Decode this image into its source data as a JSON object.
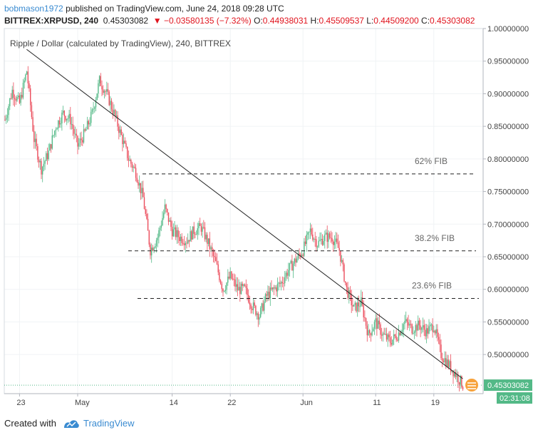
{
  "header": {
    "author": "bobmason1972",
    "published": " published on TradingView.com, June 24, 2018 09:28 UTC",
    "symbol": "BITTREX:XRPUSD, 240",
    "last": "0.45303082",
    "change": "▼ −0.03580135 (−7.32%)",
    "o_label": "O:",
    "o": "0.44938031",
    "h_label": "H:",
    "h": "0.45509537",
    "l_label": "L:",
    "l": "0.44509200",
    "c_label": "C:",
    "c": "0.45303082"
  },
  "footer": {
    "created_with": "Created with",
    "brand": "TradingView"
  },
  "colors": {
    "up": "#53b987",
    "down": "#eb4d5c",
    "grid": "#f0f3f5",
    "axis_text": "#444444",
    "price_tag": "#53b987",
    "timer_tag": "#53b987"
  },
  "chart_data": {
    "type": "candlestick",
    "title": "Ripple / Dollar (calculated by TradingView), 240, BITTREX",
    "ylim": [
      0.44,
      1.0
    ],
    "y_ticks": [
      "1.00000000",
      "0.95000000",
      "0.90000000",
      "0.85000000",
      "0.80000000",
      "0.75000000",
      "0.70000000",
      "0.65000000",
      "0.60000000",
      "0.55000000",
      "0.50000000"
    ],
    "x_ticks": [
      "23",
      "May",
      "14",
      "22",
      "Jun",
      "11",
      "19"
    ],
    "last_price": "0.45303082",
    "countdown": "02:31:08",
    "fib_levels": [
      {
        "label": "62% FIB",
        "value": 0.777
      },
      {
        "label": "38.2% FIB",
        "value": 0.659
      },
      {
        "label": "23.6% FIB",
        "value": 0.586
      }
    ],
    "trendline": {
      "start": [
        "Apr 23",
        0.968
      ],
      "end": [
        "Jun 22",
        0.463
      ]
    },
    "price_path": [
      [
        "Apr 21",
        0.86
      ],
      [
        "Apr 22",
        0.905
      ],
      [
        "Apr 23",
        0.885
      ],
      [
        "Apr 24",
        0.935
      ],
      [
        "Apr 25",
        0.83
      ],
      [
        "Apr 26",
        0.785
      ],
      [
        "Apr 27",
        0.81
      ],
      [
        "Apr 28",
        0.85
      ],
      [
        "Apr 29",
        0.87
      ],
      [
        "Apr 30",
        0.86
      ],
      [
        "May 1",
        0.82
      ],
      [
        "May 2",
        0.84
      ],
      [
        "May 3",
        0.87
      ],
      [
        "May 4",
        0.92
      ],
      [
        "May 5",
        0.9
      ],
      [
        "May 6",
        0.87
      ],
      [
        "May 7",
        0.835
      ],
      [
        "May 8",
        0.8
      ],
      [
        "May 9",
        0.78
      ],
      [
        "May 10",
        0.74
      ],
      [
        "May 11",
        0.66
      ],
      [
        "May 12",
        0.68
      ],
      [
        "May 13",
        0.725
      ],
      [
        "May 14",
        0.69
      ],
      [
        "May 15",
        0.68
      ],
      [
        "May 16",
        0.675
      ],
      [
        "May 17",
        0.69
      ],
      [
        "May 18",
        0.695
      ],
      [
        "May 19",
        0.67
      ],
      [
        "May 20",
        0.64
      ],
      [
        "May 21",
        0.6
      ],
      [
        "May 22",
        0.62
      ],
      [
        "May 23",
        0.6
      ],
      [
        "May 24",
        0.6
      ],
      [
        "May 25",
        0.575
      ],
      [
        "May 26",
        0.56
      ],
      [
        "May 27",
        0.59
      ],
      [
        "May 28",
        0.6
      ],
      [
        "May 29",
        0.61
      ],
      [
        "May 30",
        0.63
      ],
      [
        "May 31",
        0.645
      ],
      [
        "Jun 1",
        0.66
      ],
      [
        "Jun 2",
        0.69
      ],
      [
        "Jun 3",
        0.67
      ],
      [
        "Jun 4",
        0.68
      ],
      [
        "Jun 5",
        0.68
      ],
      [
        "Jun 6",
        0.66
      ],
      [
        "Jun 7",
        0.6
      ],
      [
        "Jun 8",
        0.57
      ],
      [
        "Jun 9",
        0.58
      ],
      [
        "Jun 10",
        0.53
      ],
      [
        "Jun 11",
        0.55
      ],
      [
        "Jun 12",
        0.53
      ],
      [
        "Jun 13",
        0.52
      ],
      [
        "Jun 14",
        0.53
      ],
      [
        "Jun 15",
        0.55
      ],
      [
        "Jun 16",
        0.54
      ],
      [
        "Jun 17",
        0.545
      ],
      [
        "Jun 18",
        0.535
      ],
      [
        "Jun 19",
        0.545
      ],
      [
        "Jun 20",
        0.5
      ],
      [
        "Jun 21",
        0.485
      ],
      [
        "Jun 22",
        0.47
      ],
      [
        "Jun 23",
        0.453
      ]
    ]
  }
}
